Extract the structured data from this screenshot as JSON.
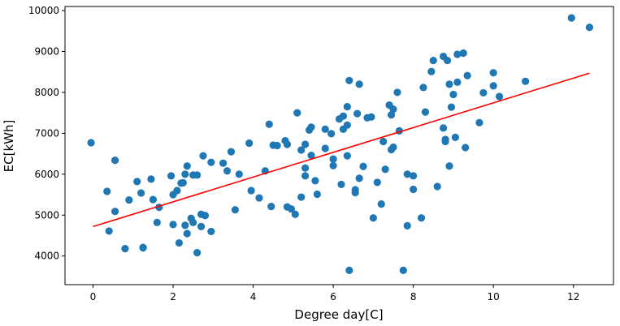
{
  "chart_data": {
    "type": "scatter",
    "title": "",
    "xlabel": "Degree day[C]",
    "ylabel": "EC[kWh]",
    "xlim": [
      -0.7,
      13.0
    ],
    "ylim": [
      3300,
      10100
    ],
    "xticks": [
      0,
      2,
      4,
      6,
      8,
      10,
      12
    ],
    "yticks": [
      4000,
      5000,
      6000,
      7000,
      8000,
      9000,
      10000
    ],
    "grid": false,
    "colors": {
      "points": "#1f77b4",
      "fit_line": "#ff0000"
    },
    "series": [
      {
        "marker": "circle",
        "points": [
          [
            -0.05,
            6770
          ],
          [
            0.35,
            5580
          ],
          [
            0.4,
            4610
          ],
          [
            0.55,
            6340
          ],
          [
            0.55,
            5090
          ],
          [
            0.8,
            4180
          ],
          [
            0.9,
            5370
          ],
          [
            1.1,
            5820
          ],
          [
            1.2,
            5540
          ],
          [
            1.25,
            4210
          ],
          [
            1.25,
            4200
          ],
          [
            1.45,
            5880
          ],
          [
            1.5,
            5380
          ],
          [
            1.6,
            4820
          ],
          [
            1.65,
            5190
          ],
          [
            1.95,
            5960
          ],
          [
            2.0,
            4770
          ],
          [
            2.0,
            5500
          ],
          [
            2.1,
            5600
          ],
          [
            2.15,
            4320
          ],
          [
            2.2,
            5780
          ],
          [
            2.25,
            5790
          ],
          [
            2.3,
            4750
          ],
          [
            2.3,
            6000
          ],
          [
            2.35,
            6200
          ],
          [
            2.35,
            4550
          ],
          [
            2.45,
            4920
          ],
          [
            2.5,
            4820
          ],
          [
            2.5,
            5980
          ],
          [
            2.6,
            5980
          ],
          [
            2.6,
            4080
          ],
          [
            2.7,
            5020
          ],
          [
            2.7,
            4720
          ],
          [
            2.75,
            6450
          ],
          [
            2.8,
            4990
          ],
          [
            2.95,
            6290
          ],
          [
            2.95,
            4600
          ],
          [
            3.25,
            6270
          ],
          [
            3.35,
            6080
          ],
          [
            3.45,
            6550
          ],
          [
            3.55,
            5130
          ],
          [
            3.65,
            6000
          ],
          [
            3.9,
            6760
          ],
          [
            3.95,
            5600
          ],
          [
            4.15,
            5420
          ],
          [
            4.3,
            6080
          ],
          [
            4.4,
            7220
          ],
          [
            4.45,
            5210
          ],
          [
            4.5,
            6710
          ],
          [
            4.6,
            6700
          ],
          [
            4.8,
            6820
          ],
          [
            4.85,
            6730
          ],
          [
            4.85,
            5200
          ],
          [
            4.95,
            5150
          ],
          [
            5.05,
            5020
          ],
          [
            5.1,
            7500
          ],
          [
            5.2,
            6590
          ],
          [
            5.2,
            5440
          ],
          [
            5.3,
            6730
          ],
          [
            5.3,
            6150
          ],
          [
            5.3,
            5960
          ],
          [
            5.4,
            7080
          ],
          [
            5.45,
            7150
          ],
          [
            5.45,
            6460
          ],
          [
            5.55,
            5840
          ],
          [
            5.6,
            5510
          ],
          [
            5.8,
            7100
          ],
          [
            5.8,
            6630
          ],
          [
            5.95,
            6990
          ],
          [
            6.0,
            6370
          ],
          [
            6.0,
            6210
          ],
          [
            6.15,
            7350
          ],
          [
            6.2,
            5750
          ],
          [
            6.25,
            7420
          ],
          [
            6.25,
            7100
          ],
          [
            6.35,
            7200
          ],
          [
            6.35,
            6450
          ],
          [
            6.35,
            7650
          ],
          [
            6.4,
            8290
          ],
          [
            6.4,
            3650
          ],
          [
            6.55,
            5620
          ],
          [
            6.55,
            5550
          ],
          [
            6.6,
            7480
          ],
          [
            6.65,
            8200
          ],
          [
            6.65,
            5900
          ],
          [
            6.75,
            6190
          ],
          [
            6.85,
            7380
          ],
          [
            6.95,
            7400
          ],
          [
            7.0,
            4930
          ],
          [
            7.1,
            5800
          ],
          [
            7.2,
            5270
          ],
          [
            7.25,
            6800
          ],
          [
            7.3,
            6120
          ],
          [
            7.4,
            7690
          ],
          [
            7.45,
            6600
          ],
          [
            7.45,
            7450
          ],
          [
            7.5,
            7590
          ],
          [
            7.5,
            6660
          ],
          [
            7.6,
            8000
          ],
          [
            7.65,
            7060
          ],
          [
            7.75,
            3650
          ],
          [
            7.85,
            6000
          ],
          [
            7.85,
            4740
          ],
          [
            8.0,
            5960
          ],
          [
            8.0,
            5630
          ],
          [
            8.2,
            4930
          ],
          [
            8.25,
            8120
          ],
          [
            8.3,
            7520
          ],
          [
            8.45,
            8510
          ],
          [
            8.5,
            8780
          ],
          [
            8.6,
            5700
          ],
          [
            8.75,
            7130
          ],
          [
            8.75,
            8880
          ],
          [
            8.8,
            6850
          ],
          [
            8.8,
            6800
          ],
          [
            8.85,
            8780
          ],
          [
            8.9,
            6200
          ],
          [
            8.9,
            8200
          ],
          [
            8.95,
            7640
          ],
          [
            9.0,
            7950
          ],
          [
            9.05,
            6900
          ],
          [
            9.1,
            8930
          ],
          [
            9.1,
            8250
          ],
          [
            9.25,
            8960
          ],
          [
            9.3,
            6650
          ],
          [
            9.35,
            8410
          ],
          [
            9.65,
            7260
          ],
          [
            9.75,
            7990
          ],
          [
            10.0,
            8480
          ],
          [
            10.0,
            8160
          ],
          [
            10.15,
            7900
          ],
          [
            10.8,
            8270
          ],
          [
            11.95,
            9820
          ],
          [
            12.4,
            9590
          ]
        ]
      }
    ],
    "fit_line": {
      "x": [
        0.0,
        12.4
      ],
      "y": [
        4720,
        8470
      ]
    }
  }
}
